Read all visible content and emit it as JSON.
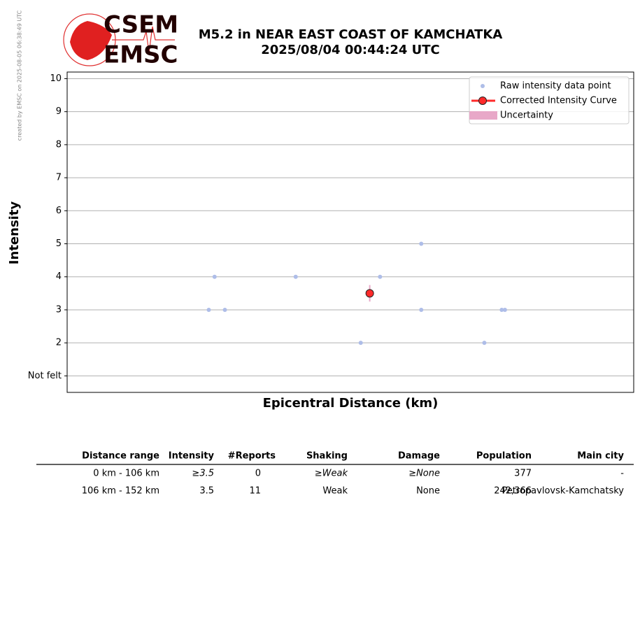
{
  "header": {
    "logo_top": "CSEM",
    "logo_bottom": "EMSC",
    "credit": "created by EMSC on 2025-08-05 06:38:49 UTC"
  },
  "chart_data": {
    "type": "scatter",
    "title": "M5.2 in NEAR EAST COAST OF KAMCHATKA",
    "subtitle": "2025/08/04 00:44:24 UTC",
    "x_label": "Epicentral Distance (km)",
    "y_label": "Intensity",
    "xlim": [
      84,
      172
    ],
    "ylim": [
      0.5,
      10.2
    ],
    "yticks": [
      {
        "value": 1,
        "label": "Not felt"
      },
      2,
      3,
      4,
      5,
      6,
      7,
      8,
      9,
      10
    ],
    "grid": true,
    "legend": "upper right",
    "series": [
      {
        "name": "Raw intensity data point",
        "color": "#aebde8",
        "x": [
          106.9,
          106,
          108.5,
          119.5,
          129.6,
          132.6,
          139,
          139,
          148.8,
          151.5,
          152
        ],
        "values": [
          4,
          3,
          3,
          4,
          2,
          4,
          5,
          3,
          2,
          3,
          3
        ]
      },
      {
        "name": "Corrected Intensity Curve",
        "color": "#ff2a2a",
        "x": [
          131
        ],
        "values": [
          3.5
        ],
        "errors": [
          0.25
        ]
      }
    ],
    "uncertainty": {
      "name": "Uncertainty",
      "color": "#e8a8c8"
    }
  },
  "table": {
    "columns": [
      "Distance range",
      "Intensity",
      "#Reports",
      "Shaking",
      "Damage",
      "Population",
      "Main city"
    ],
    "rows": [
      [
        "0 km -  106 km",
        "≥3.5",
        "0",
        "≥Weak",
        "≥None",
        "377",
        "-"
      ],
      [
        "106 km -  152 km",
        "3.5",
        "11",
        "Weak",
        "None",
        "242,366",
        "Petropavlovsk-Kamchatsky"
      ]
    ]
  }
}
